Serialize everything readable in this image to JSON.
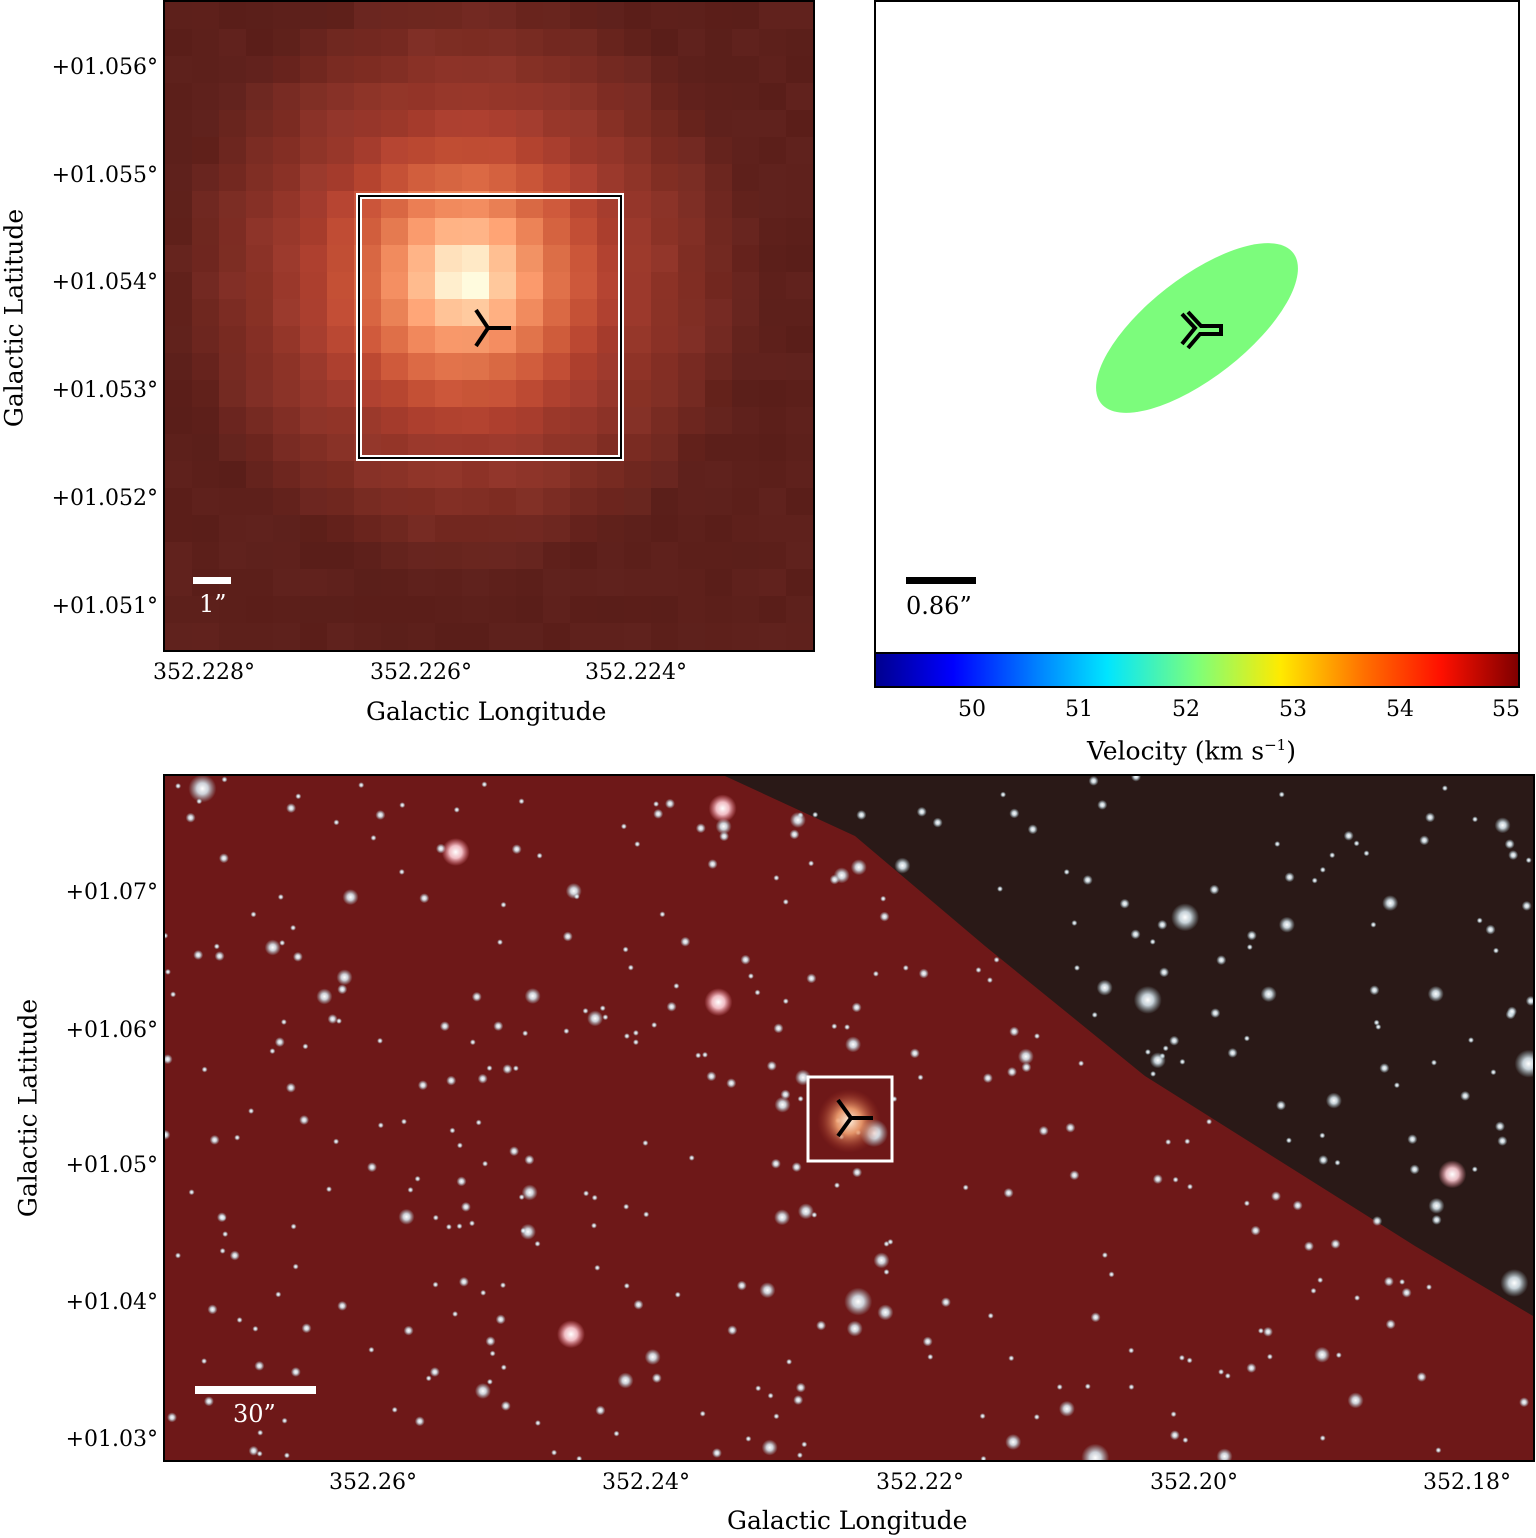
{
  "top_left": {
    "y_ticks": [
      "+01.056°",
      "+01.055°",
      "+01.054°",
      "+01.053°",
      "+01.052°",
      "+01.051°"
    ],
    "x_ticks": [
      "352.228°",
      "352.226°",
      "352.224°"
    ],
    "xlabel": "Galactic Longitude",
    "ylabel": "Galactic Latitude",
    "scalebar_label": "1”"
  },
  "top_right": {
    "scalebar_label": "0.86”",
    "colorbar_ticks": [
      "50",
      "51",
      "52",
      "53",
      "54",
      "55"
    ],
    "colorbar_label": "Velocity (km s",
    "colorbar_label_sup": "−1",
    "colorbar_label_end": ")",
    "ellipse_color": "#7cfc7c"
  },
  "bottom": {
    "y_ticks": [
      "+01.07°",
      "+01.06°",
      "+01.05°",
      "+01.04°",
      "+01.03°"
    ],
    "x_ticks": [
      "352.26°",
      "352.24°",
      "352.22°",
      "352.20°",
      "352.18°"
    ],
    "xlabel": "Galactic Longitude",
    "ylabel": "Galactic Latitude",
    "scalebar_label": "30”"
  }
}
